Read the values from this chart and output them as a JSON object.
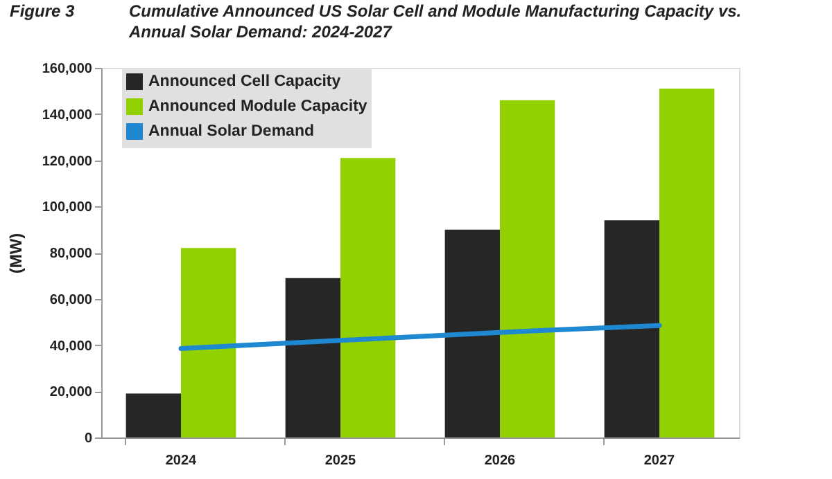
{
  "chart_data": {
    "type": "bar",
    "title": "Cumulative Announced US Solar Cell and Module Manufacturing Capacity vs. Annual Solar Demand: 2024-2027",
    "annotations": [
      "Figure 3"
    ],
    "ylabel": "(MW)",
    "categories": [
      "2024",
      "2025",
      "2026",
      "2027"
    ],
    "series": [
      {
        "name": "Announced Cell Capacity",
        "color": "#262626",
        "values": [
          19000,
          69000,
          90000,
          94000
        ]
      },
      {
        "name": "Announced Module Capacity",
        "color": "#92d000",
        "values": [
          82000,
          121000,
          146000,
          151000
        ]
      },
      {
        "name": "Annual Solar Demand",
        "type": "line",
        "color": "#1e88d0",
        "values": [
          38500,
          42000,
          45500,
          48500
        ]
      }
    ],
    "ylim": [
      0,
      160000
    ],
    "yticks": [
      0,
      {
        "value": 20000,
        "label": "20,000"
      },
      {
        "value": 40000,
        "label": "40,000"
      },
      {
        "value": 60000,
        "label": "60,000"
      },
      {
        "value": 80000,
        "label": "80,000"
      },
      {
        "value": 100000,
        "label": "100,000"
      },
      {
        "value": 120000,
        "label": "120,000"
      },
      {
        "value": 140000,
        "label": "140,000"
      },
      {
        "value": 160000,
        "label": "160,000"
      }
    ],
    "grid": false,
    "legend": "top left"
  }
}
